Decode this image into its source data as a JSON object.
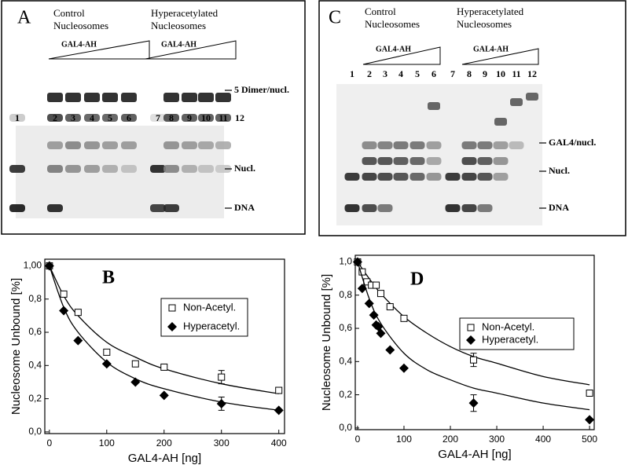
{
  "panels": [
    {
      "letter": "A",
      "control": [
        "Control",
        "Nucleosomes"
      ],
      "hyper": [
        "Hyperacetylated",
        "Nucleosomes"
      ],
      "reagent": [
        "GAL4-AH",
        "GAL4-AH"
      ],
      "lanes": [
        "1",
        "2",
        "3",
        "4",
        "5",
        "6",
        "7",
        "8",
        "9",
        "10",
        "11",
        "12"
      ],
      "markers": [
        "5 Dimer/nucl.",
        "Nucl.",
        "DNA"
      ]
    },
    {
      "letter": "C",
      "control": [
        "Control",
        "Nucleosomes"
      ],
      "hyper": [
        "Hyperacetylated",
        "Nucleosomes"
      ],
      "reagent": [
        "GAL4-AH",
        "GAL4-AH"
      ],
      "lanes": [
        "1",
        "2",
        "3",
        "4",
        "5",
        "6",
        "7",
        "8",
        "9",
        "10",
        "11",
        "12"
      ],
      "markers": [
        "GAL4/nucl.",
        "Nucl.",
        "DNA"
      ]
    }
  ],
  "chart_data": [
    {
      "type": "scatter",
      "annotation": "B",
      "xlabel": "GAL4-AH   [ng]",
      "ylabel": "Nucleosome Unbound [%]",
      "xlim": [
        -8,
        410
      ],
      "ylim": [
        -0.01,
        1.04
      ],
      "xticks": [
        0,
        100,
        200,
        300,
        400
      ],
      "yticks": [
        {
          "value": 0,
          "label": "0,0"
        },
        {
          "value": 0.2,
          "label": "0,2"
        },
        {
          "value": 0.4,
          "label": "0,4"
        },
        {
          "value": 0.6,
          "label": "0,6"
        },
        {
          "value": 0.8,
          "label": "0,8"
        },
        {
          "value": 1,
          "label": "1,00"
        }
      ],
      "legend": "upper right",
      "series": [
        {
          "name": "Non-Acetyl.",
          "marker": "square",
          "color": "#000000",
          "x": [
            0,
            25,
            50,
            100,
            150,
            200,
            300,
            400
          ],
          "values": [
            1.0,
            0.83,
            0.72,
            0.48,
            0.41,
            0.39,
            0.33,
            0.25
          ],
          "errors": [
            null,
            null,
            null,
            null,
            null,
            null,
            0.04,
            null
          ],
          "fit": {
            "x": [
              0,
              25,
              50,
              100,
              150,
              200,
              300,
              400
            ],
            "values": [
              1.0,
              0.82,
              0.7,
              0.54,
              0.45,
              0.38,
              0.29,
              0.23
            ]
          }
        },
        {
          "name": "Hyperacetyl.",
          "marker": "diamond",
          "color": "#000000",
          "x": [
            0,
            25,
            50,
            100,
            150,
            200,
            300,
            400
          ],
          "values": [
            1.0,
            0.73,
            0.55,
            0.41,
            0.3,
            0.22,
            0.17,
            0.13
          ],
          "errors": [
            null,
            null,
            null,
            null,
            null,
            null,
            0.04,
            null
          ],
          "fit": {
            "x": [
              0,
              25,
              50,
              100,
              150,
              200,
              300,
              400
            ],
            "values": [
              1.0,
              0.75,
              0.6,
              0.42,
              0.32,
              0.26,
              0.18,
              0.13
            ]
          }
        }
      ]
    },
    {
      "type": "scatter",
      "annotation": "D",
      "xlabel": "GAL4-AH [ng]",
      "ylabel": "Nucleosome Unbound [%]",
      "xlim": [
        -5,
        510
      ],
      "ylim": [
        -0.01,
        1.04
      ],
      "xticks": [
        0,
        100,
        200,
        300,
        400,
        500
      ],
      "yticks": [
        {
          "value": 0,
          "label": "0,0"
        },
        {
          "value": 0.2,
          "label": "0,2"
        },
        {
          "value": 0.4,
          "label": "0,4"
        },
        {
          "value": 0.6,
          "label": "0,6"
        },
        {
          "value": 0.8,
          "label": "0,8"
        },
        {
          "value": 1,
          "label": "1,0"
        }
      ],
      "legend": "upper right",
      "series": [
        {
          "name": "Non-Acetyl.",
          "marker": "square",
          "color": "#000000",
          "x": [
            0,
            10,
            20,
            30,
            40,
            50,
            70,
            100,
            250,
            500
          ],
          "values": [
            1.0,
            0.94,
            0.88,
            0.86,
            0.86,
            0.81,
            0.73,
            0.66,
            0.41,
            0.21
          ],
          "errors": [
            null,
            null,
            null,
            null,
            null,
            null,
            null,
            null,
            0.04,
            null
          ],
          "fit": {
            "x": [
              0,
              25,
              50,
              100,
              150,
              200,
              250,
              300,
              400,
              500
            ],
            "values": [
              1.0,
              0.9,
              0.81,
              0.67,
              0.57,
              0.49,
              0.43,
              0.39,
              0.31,
              0.26
            ]
          }
        },
        {
          "name": "Hyperacetyl.",
          "marker": "diamond",
          "color": "#000000",
          "x": [
            0,
            10,
            25,
            35,
            40,
            45,
            50,
            70,
            100,
            250,
            500
          ],
          "values": [
            1.0,
            0.84,
            0.75,
            0.68,
            0.62,
            0.61,
            0.57,
            0.47,
            0.36,
            0.15,
            0.05
          ],
          "errors": [
            null,
            null,
            null,
            null,
            null,
            null,
            null,
            null,
            null,
            0.05,
            null
          ],
          "fit": {
            "x": [
              0,
              25,
              50,
              100,
              150,
              200,
              250,
              300,
              400,
              500
            ],
            "values": [
              1.0,
              0.78,
              0.63,
              0.45,
              0.35,
              0.29,
              0.24,
              0.21,
              0.15,
              0.11
            ]
          }
        }
      ]
    }
  ]
}
